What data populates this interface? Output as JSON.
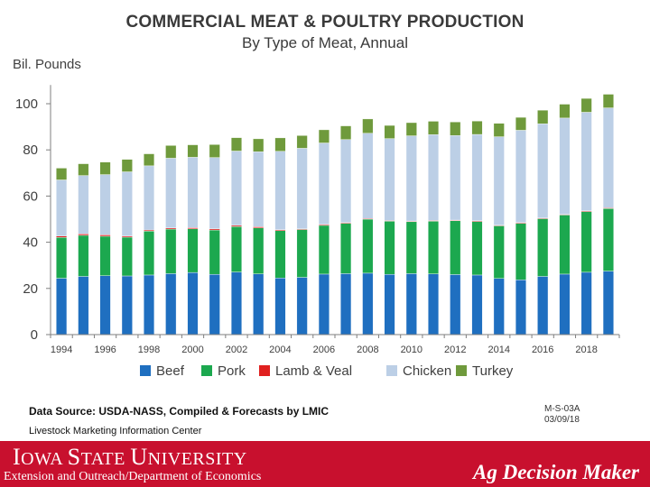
{
  "colors": {
    "beef": "#1f6fc0",
    "pork": "#1ca84f",
    "lamb": "#e0201f",
    "chicken": "#bccfe6",
    "turkey": "#6f9a3c",
    "axis": "#7f7f7f",
    "footer": "#c8102e"
  },
  "chart_data": {
    "type": "bar",
    "stacked": true,
    "title": "COMMERCIAL MEAT & POULTRY PRODUCTION",
    "subtitle": "By Type of Meat, Annual",
    "ylabel": "Bil. Pounds",
    "xlabel": "",
    "ylim": [
      0,
      105
    ],
    "yticks": [
      0,
      20,
      40,
      60,
      80,
      100
    ],
    "legend_position": "bottom",
    "categories": [
      "1994",
      "1995",
      "1996",
      "1997",
      "1998",
      "1999",
      "2000",
      "2001",
      "2002",
      "2003",
      "2004",
      "2005",
      "2006",
      "2007",
      "2008",
      "2009",
      "2010",
      "2011",
      "2012",
      "2013",
      "2014",
      "2015",
      "2016",
      "2017",
      "2018",
      "2019"
    ],
    "xtick_labels": [
      "1994",
      "1996",
      "1998",
      "2000",
      "2002",
      "2004",
      "2006",
      "2008",
      "2010",
      "2012",
      "2014",
      "2016",
      "2018"
    ],
    "series": [
      {
        "name": "Beef",
        "key": "beef",
        "values": [
          24.4,
          25.2,
          25.5,
          25.4,
          25.8,
          26.4,
          26.9,
          26.1,
          27.1,
          26.3,
          24.5,
          24.8,
          26.2,
          26.4,
          26.6,
          26.1,
          26.4,
          26.3,
          26.0,
          25.8,
          24.3,
          23.7,
          25.2,
          26.2,
          27.0,
          27.5
        ]
      },
      {
        "name": "Pork",
        "key": "pork",
        "values": [
          17.7,
          17.8,
          17.1,
          16.8,
          19.0,
          19.3,
          18.9,
          19.2,
          19.7,
          19.9,
          20.5,
          20.7,
          21.1,
          21.8,
          23.4,
          23.0,
          22.5,
          22.8,
          23.3,
          23.2,
          22.8,
          24.5,
          25.0,
          25.6,
          26.3,
          27.1
        ]
      },
      {
        "name": "Lamb & Veal",
        "key": "lamb",
        "values": [
          0.6,
          0.6,
          0.6,
          0.5,
          0.5,
          0.5,
          0.5,
          0.5,
          0.5,
          0.5,
          0.4,
          0.3,
          0.4,
          0.3,
          0.3,
          0.3,
          0.3,
          0.3,
          0.3,
          0.3,
          0.3,
          0.3,
          0.3,
          0.3,
          0.3,
          0.3
        ]
      },
      {
        "name": "Chicken",
        "key": "chicken",
        "values": [
          24.3,
          25.3,
          26.1,
          27.8,
          27.8,
          30.2,
          30.5,
          30.9,
          32.2,
          32.5,
          34.0,
          34.9,
          35.3,
          36.0,
          36.9,
          35.5,
          36.9,
          37.2,
          36.6,
          37.4,
          38.3,
          40.0,
          40.8,
          41.7,
          42.7,
          43.3
        ]
      },
      {
        "name": "Turkey",
        "key": "turkey",
        "values": [
          5.1,
          5.1,
          5.4,
          5.4,
          5.2,
          5.5,
          5.4,
          5.6,
          5.8,
          5.6,
          5.8,
          5.5,
          5.7,
          5.9,
          6.2,
          5.7,
          5.7,
          5.8,
          5.9,
          5.8,
          5.8,
          5.6,
          5.9,
          6.0,
          6.0,
          5.9
        ]
      }
    ]
  },
  "footer": {
    "data_source": "Data Source:  USDA-NASS, Compiled & Forecasts by LMIC",
    "lmic": "Livestock Marketing Information Center",
    "code_line1": "M-S-03A",
    "code_line2": "03/09/18",
    "university_cap1": "I",
    "university_rest1": "OWA ",
    "university_cap2": "S",
    "university_rest2": "TATE ",
    "university_cap3": "U",
    "university_rest3": "NIVERSITY",
    "extension": "Extension and Outreach/Department of Economics",
    "brand": "Ag Decision Maker"
  }
}
